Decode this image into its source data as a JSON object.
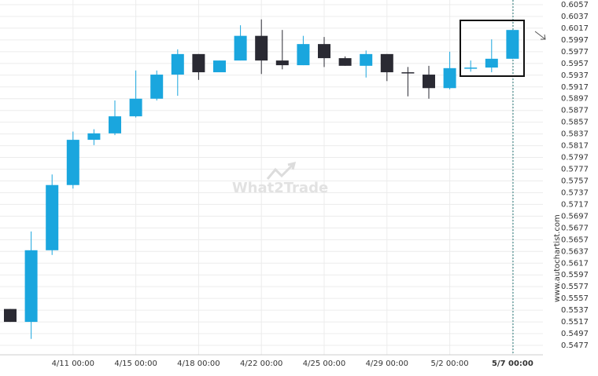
{
  "chart_data": {
    "type": "candlestick",
    "categories": [
      null,
      null,
      null,
      "4/11 00:00",
      null,
      null,
      "4/15 00:00",
      null,
      null,
      "4/18 00:00",
      null,
      null,
      "4/22 00:00",
      null,
      null,
      "4/25 00:00",
      null,
      null,
      "4/29 00:00",
      null,
      null,
      "5/2 00:00",
      null,
      null,
      "5/7 00:00"
    ],
    "open": [
      0.5539,
      0.5517,
      0.5639,
      0.575,
      0.5827,
      0.5838,
      0.5867,
      0.5897,
      0.5938,
      0.5973,
      0.5942,
      0.5962,
      0.6004,
      0.5962,
      0.5954,
      0.599,
      0.5966,
      0.5953,
      0.5973,
      0.5942,
      0.5938,
      0.5915,
      0.5949,
      0.595,
      0.5965
    ],
    "high": [
      0.5539,
      0.5671,
      0.5768,
      0.5841,
      0.5845,
      0.5894,
      0.5945,
      0.5945,
      0.5981,
      0.5973,
      0.5962,
      0.6022,
      0.6032,
      0.6014,
      0.6004,
      0.6002,
      0.5969,
      0.5979,
      0.5973,
      0.5951,
      0.5953,
      0.5977,
      0.5962,
      0.5998,
      0.6014
    ],
    "low": [
      0.5517,
      0.5488,
      0.5631,
      0.5744,
      0.5818,
      0.5835,
      0.5865,
      0.5894,
      0.5902,
      0.5929,
      0.5942,
      0.5962,
      0.5939,
      0.5947,
      0.5954,
      0.5951,
      0.5953,
      0.5933,
      0.5927,
      0.5901,
      0.5897,
      0.5913,
      0.5943,
      0.5942,
      0.5965
    ],
    "close": [
      0.5517,
      0.5639,
      0.575,
      0.5827,
      0.5838,
      0.5867,
      0.5897,
      0.5938,
      0.5973,
      0.5942,
      0.5962,
      0.6004,
      0.5962,
      0.5954,
      0.599,
      0.5966,
      0.5953,
      0.5973,
      0.5942,
      0.5941,
      0.5915,
      0.5949,
      0.595,
      0.5965,
      0.6014
    ],
    "up_color": "#1aa6de",
    "down_color": "#2a2a33",
    "ylim": [
      0.5467,
      0.6062
    ],
    "yticks": [
      0.5477,
      0.5497,
      0.5517,
      0.5537,
      0.5557,
      0.5577,
      0.5597,
      0.5617,
      0.5637,
      0.5657,
      0.5677,
      0.5697,
      0.5717,
      0.5737,
      0.5757,
      0.5777,
      0.5797,
      0.5817,
      0.5837,
      0.5857,
      0.5877,
      0.5897,
      0.5917,
      0.5937,
      0.5957,
      0.5977,
      0.5997,
      0.6017,
      0.6037,
      0.6057
    ],
    "grid": true,
    "watermark": "What2Trade",
    "source": "www.autochartist.com"
  }
}
